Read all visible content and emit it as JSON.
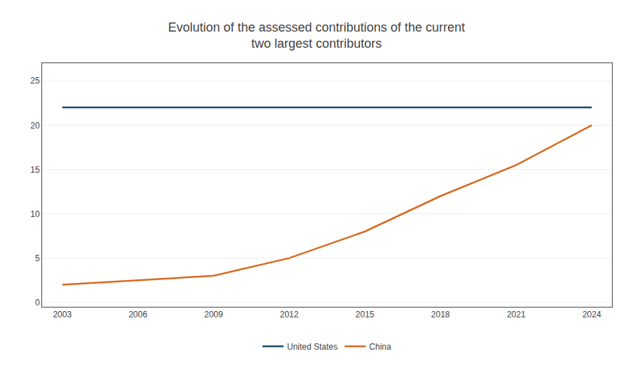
{
  "chart_data": {
    "type": "line",
    "title": "Evolution of the assessed contributions of the current\ntwo largest contributors",
    "x": [
      2003,
      2006,
      2009,
      2012,
      2015,
      2018,
      2021,
      2024
    ],
    "series": [
      {
        "name": "United States",
        "color": "#1a4a6b",
        "values": [
          22,
          22,
          22,
          22,
          22,
          22,
          22,
          22
        ]
      },
      {
        "name": "China",
        "color": "#d9691e",
        "values": [
          2,
          2.5,
          3.0,
          5.0,
          8.0,
          12.0,
          15.5,
          20.0
        ]
      }
    ],
    "xlim": [
      2002.2,
      2024.8
    ],
    "xticks": [
      2003,
      2006,
      2009,
      2012,
      2015,
      2018,
      2021,
      2024
    ],
    "ylim": [
      -0.5,
      27
    ],
    "yticks": [
      0,
      5,
      10,
      15,
      20,
      25
    ],
    "grid": true,
    "legend": "bottom"
  }
}
